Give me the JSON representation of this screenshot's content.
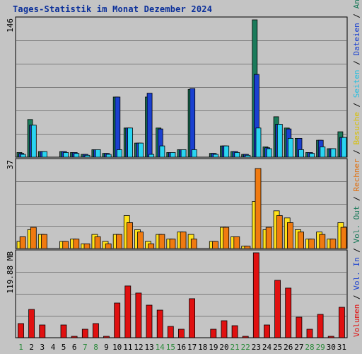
{
  "title": "Tages-Statistik im Monat Dezember 2024",
  "colors": {
    "bg": "#c4c4c4",
    "frame": "#000000",
    "grid": "#7a7a7a",
    "anfragen": "#1a7a5a",
    "dateien": "#1a40d0",
    "seiten": "#29d5f2",
    "besuche": "#ffe21b",
    "rechner": "#f07a10",
    "volumen": "#e01010",
    "label_blue": "#1a40d0",
    "label_teal": "#1a7a5a",
    "label_cyan": "#27bfe0",
    "label_yellow": "#d8c000",
    "label_orange": "#e07010",
    "label_red": "#e01010",
    "weekend_green": "#2a8a3a"
  },
  "chart_data": [
    {
      "type": "bar",
      "panel": "top",
      "ymax_label": "146",
      "ylim": [
        0,
        146
      ],
      "categories": [
        "1",
        "2",
        "3",
        "4",
        "5",
        "6",
        "7",
        "8",
        "9",
        "10",
        "11",
        "12",
        "13",
        "14",
        "15",
        "16",
        "17",
        "18",
        "19",
        "20",
        "21",
        "22",
        "23",
        "24",
        "25",
        "26",
        "27",
        "28",
        "29",
        "30",
        "31"
      ],
      "series": [
        {
          "name": "Anfragen",
          "color_key": "anfragen",
          "values": [
            5,
            40,
            6,
            0,
            6,
            5,
            3,
            8,
            4,
            64,
            31,
            15,
            64,
            31,
            5,
            8,
            72,
            0,
            4,
            12,
            6,
            3,
            146,
            11,
            43,
            31,
            20,
            5,
            18,
            9,
            27
          ]
        },
        {
          "name": "Dateien",
          "color_key": "dateien",
          "values": [
            4,
            34,
            6,
            0,
            6,
            5,
            3,
            8,
            4,
            64,
            31,
            15,
            68,
            30,
            5,
            8,
            73,
            0,
            4,
            12,
            6,
            3,
            88,
            10,
            35,
            30,
            20,
            5,
            18,
            9,
            21
          ]
        },
        {
          "name": "Seiten",
          "color_key": "seiten",
          "values": [
            3,
            34,
            6,
            0,
            5,
            4,
            2,
            8,
            3,
            8,
            31,
            15,
            3,
            12,
            5,
            8,
            8,
            0,
            3,
            12,
            5,
            2,
            31,
            9,
            35,
            20,
            8,
            4,
            11,
            9,
            21
          ]
        }
      ]
    },
    {
      "type": "bar",
      "panel": "middle",
      "ymax_label": "37",
      "ylim": [
        0,
        37
      ],
      "categories": [
        "1",
        "2",
        "3",
        "4",
        "5",
        "6",
        "7",
        "8",
        "9",
        "10",
        "11",
        "12",
        "13",
        "14",
        "15",
        "16",
        "17",
        "18",
        "19",
        "20",
        "21",
        "22",
        "23",
        "24",
        "25",
        "26",
        "27",
        "28",
        "29",
        "30",
        "31"
      ],
      "series": [
        {
          "name": "Besuche",
          "color_key": "besuche",
          "values": [
            3,
            8,
            6,
            0,
            3,
            4,
            2,
            6,
            3,
            6,
            14,
            8,
            3,
            6,
            4,
            7,
            6,
            0,
            3,
            9,
            5,
            1,
            20,
            8,
            16,
            13,
            8,
            4,
            7,
            4,
            11
          ]
        },
        {
          "name": "Rechner",
          "color_key": "rechner",
          "values": [
            5,
            9,
            6,
            0,
            3,
            4,
            2,
            5,
            2,
            6,
            11,
            7,
            2,
            6,
            4,
            7,
            4,
            0,
            3,
            9,
            5,
            1,
            34,
            9,
            14,
            11,
            7,
            4,
            6,
            4,
            9
          ]
        }
      ]
    },
    {
      "type": "bar",
      "panel": "bottom",
      "ymax_label": "119.88 MB",
      "ylim": [
        0,
        119.88
      ],
      "categories": [
        "1",
        "2",
        "3",
        "4",
        "5",
        "6",
        "7",
        "8",
        "9",
        "10",
        "11",
        "12",
        "13",
        "14",
        "15",
        "16",
        "17",
        "18",
        "19",
        "20",
        "21",
        "22",
        "23",
        "24",
        "25",
        "26",
        "27",
        "28",
        "29",
        "30",
        "31"
      ],
      "series": [
        {
          "name": "Volumen",
          "color_key": "volumen",
          "values": [
            20,
            40,
            18,
            0,
            18,
            2,
            12,
            20,
            2,
            49,
            73,
            63,
            46,
            39,
            16,
            12,
            55,
            0,
            12,
            24,
            17,
            2,
            119.88,
            18,
            81,
            70,
            29,
            12,
            33,
            2,
            43
          ]
        }
      ]
    }
  ],
  "right_legend": [
    {
      "text": "Volumen",
      "color_key": "label_red"
    },
    {
      "text": " / ",
      "color_key": "frame"
    },
    {
      "text": "Vol. In",
      "color_key": "label_blue"
    },
    {
      "text": " / ",
      "color_key": "frame"
    },
    {
      "text": "Vol. Out",
      "color_key": "label_teal"
    },
    {
      "text": " / ",
      "color_key": "frame"
    },
    {
      "text": "Rechner",
      "color_key": "label_orange"
    },
    {
      "text": " / ",
      "color_key": "frame"
    },
    {
      "text": "Besuche",
      "color_key": "label_yellow"
    },
    {
      "text": " / ",
      "color_key": "frame"
    },
    {
      "text": "Seiten",
      "color_key": "label_cyan"
    },
    {
      "text": " / ",
      "color_key": "frame"
    },
    {
      "text": "Dateien",
      "color_key": "label_blue"
    },
    {
      "text": " / ",
      "color_key": "frame"
    },
    {
      "text": "Anfragen",
      "color_key": "label_teal"
    }
  ],
  "weekend_days": [
    "1",
    "7",
    "8",
    "14",
    "15",
    "21",
    "22",
    "28",
    "29"
  ]
}
